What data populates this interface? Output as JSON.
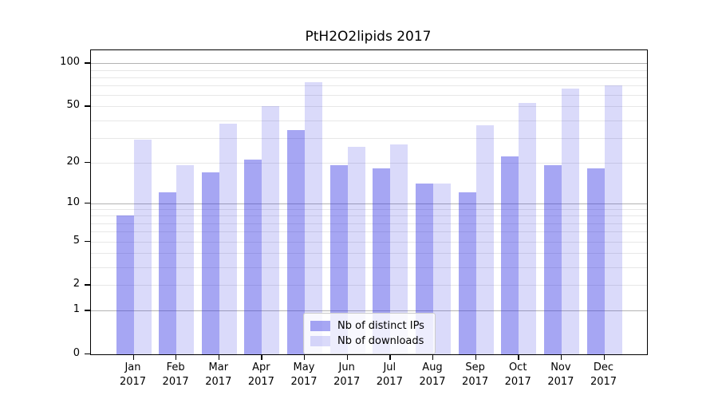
{
  "chart_data": {
    "type": "bar",
    "title": "PtH2O2lipids 2017",
    "xlabel": "",
    "ylabel": "",
    "categories": [
      "Jan 2017",
      "Feb 2017",
      "Mar 2017",
      "Apr 2017",
      "May 2017",
      "Jun 2017",
      "Jul 2017",
      "Aug 2017",
      "Sep 2017",
      "Oct 2017",
      "Nov 2017",
      "Dec 2017"
    ],
    "series": [
      {
        "name": "Nb of distinct IPs",
        "values": [
          8,
          12,
          17,
          21,
          34,
          19,
          18,
          14,
          12,
          22,
          19,
          18
        ],
        "color": "rgba(48,48,228,0.43)"
      },
      {
        "name": "Nb of downloads",
        "values": [
          29,
          19,
          38,
          50,
          74,
          26,
          27,
          14,
          37,
          53,
          67,
          70
        ],
        "color": "rgba(48,48,228,0.18)"
      }
    ],
    "y_axis": {
      "scale": "log1p",
      "tick_values": [
        0,
        1,
        2,
        5,
        10,
        20,
        50,
        100
      ],
      "tick_labels": [
        "0",
        "1",
        "2",
        "5",
        "10",
        "20",
        "50",
        "100"
      ],
      "major_gridlines": [
        1,
        10,
        100
      ],
      "minor_gridlines": [
        2,
        3,
        4,
        5,
        6,
        7,
        8,
        9,
        20,
        30,
        40,
        50,
        60,
        70,
        80,
        90
      ],
      "ylim": [
        0,
        123
      ]
    },
    "legend": {
      "position": "lower-center-inside",
      "entries": [
        "Nb of distinct IPs",
        "Nb of downloads"
      ]
    },
    "grid": true
  },
  "colors": {
    "bar_distinct_ips": "rgba(48,48,228,0.43)",
    "bar_downloads": "rgba(48,48,228,0.18)",
    "gridline_major": "#b3b3b3",
    "gridline_minor": "#e7e7e7",
    "axis": "#000000",
    "legend_border": "#cccccc",
    "legend_background": "rgba(255,255,255,0.8)"
  }
}
